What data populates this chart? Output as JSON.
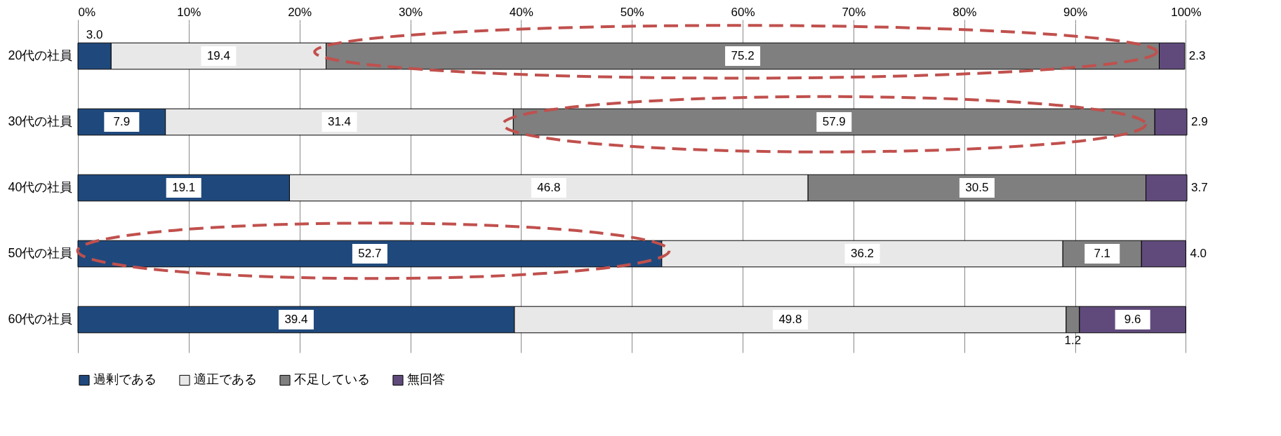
{
  "chart_data": {
    "type": "bar",
    "orientation": "horizontal",
    "stacked": true,
    "grid": "x",
    "legend": "bottom",
    "categories": [
      "20代の社員",
      "30代の社員",
      "40代の社員",
      "50代の社員",
      "60代の社員"
    ],
    "series": [
      {
        "name": "過剰である",
        "color": "#1f497d",
        "values": [
          3.0,
          7.9,
          19.1,
          52.7,
          39.4
        ],
        "value_labels": [
          "3.0",
          "7.9",
          "19.1",
          "52.7",
          "39.4"
        ]
      },
      {
        "name": "適正である",
        "color": "#e8e8e8",
        "values": [
          19.4,
          31.4,
          46.8,
          36.2,
          49.8
        ],
        "value_labels": [
          "19.4",
          "31.4",
          "46.8",
          "36.2",
          "49.8"
        ]
      },
      {
        "name": "不足している",
        "color": "#7f7f7f",
        "values": [
          75.2,
          57.9,
          30.5,
          7.1,
          1.2
        ],
        "value_labels": [
          "75.2",
          "57.9",
          "30.5",
          "7.1",
          "1.2"
        ]
      },
      {
        "name": "無回答",
        "color": "#604a7b",
        "values": [
          2.3,
          2.9,
          3.7,
          4.0,
          9.6
        ],
        "value_labels": [
          "2.3",
          "2.9",
          "3.7",
          "4.0",
          "9.6"
        ]
      }
    ],
    "xlim": [
      0,
      100.1
    ],
    "xticks": [
      {
        "value": 0,
        "label": "0%"
      },
      {
        "value": 10,
        "label": "10%"
      },
      {
        "value": 20,
        "label": "20%"
      },
      {
        "value": 30,
        "label": "30%"
      },
      {
        "value": 40,
        "label": "40%"
      },
      {
        "value": 50,
        "label": "50%"
      },
      {
        "value": 60,
        "label": "60%"
      },
      {
        "value": 70,
        "label": "70%"
      },
      {
        "value": 80,
        "label": "80%"
      },
      {
        "value": 90,
        "label": "90%"
      },
      {
        "value": 100,
        "label": "100%"
      }
    ]
  }
}
